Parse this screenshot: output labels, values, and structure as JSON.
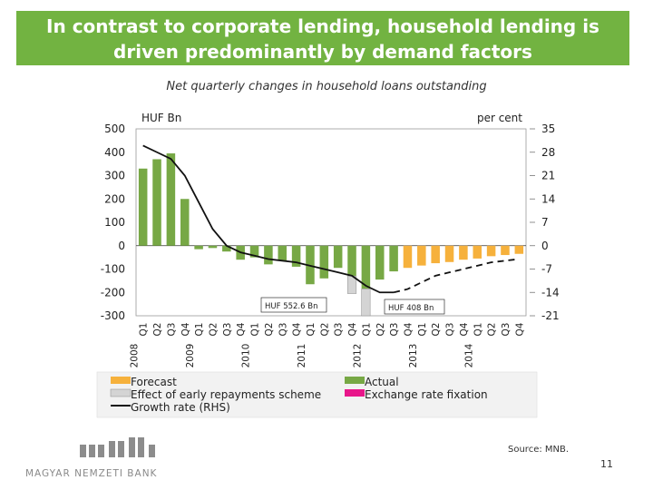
{
  "title": {
    "line1": "In contrast to corporate lending, household lending is",
    "line2": "driven predominantly by demand factors"
  },
  "subtitle": "Net quarterly changes in household loans outstanding",
  "source": "Source: MNB.",
  "page_number": "11",
  "logo": {
    "text": "MAGYAR NEMZETI BANK"
  },
  "colors": {
    "title_bg": "#72b341",
    "actual": "#77a845",
    "forecast": "#f6b13c",
    "early_repayment": "#d4d4d4",
    "fx_fixation": "#e8168a",
    "growth_line": "#111111"
  },
  "chart_data": {
    "type": "bar",
    "left_axis_unit": "HUF Bn",
    "right_axis_unit": "per cent",
    "ylim": [
      -300,
      500
    ],
    "y2lim": [
      -21,
      35
    ],
    "yticks": [
      "500",
      "400",
      "300",
      "200",
      "100",
      "0",
      "-100",
      "-200",
      "-300"
    ],
    "y2ticks": [
      "35",
      "28",
      "21",
      "14",
      "7",
      "0",
      "-7",
      "-14",
      "-21"
    ],
    "quarters": [
      "Q1",
      "Q2",
      "Q3",
      "Q4",
      "Q1",
      "Q2",
      "Q3",
      "Q4",
      "Q1",
      "Q2",
      "Q3",
      "Q4",
      "Q1",
      "Q2",
      "Q3",
      "Q4",
      "Q1",
      "Q2",
      "Q3",
      "Q4",
      "Q1",
      "Q2",
      "Q3",
      "Q4",
      "Q1",
      "Q2",
      "Q3",
      "Q4"
    ],
    "years": [
      "2008",
      "2009",
      "2010",
      "2011",
      "2012",
      "2013",
      "2014"
    ],
    "series": [
      {
        "name": "Actual",
        "values": [
          330,
          370,
          395,
          200,
          -15,
          -10,
          -25,
          -60,
          -50,
          -80,
          -65,
          -90,
          -165,
          -140,
          -95,
          -130,
          -185,
          -145,
          -110,
          null,
          null,
          null,
          null,
          null,
          null,
          null,
          null,
          null
        ]
      },
      {
        "name": "Forecast",
        "values": [
          null,
          null,
          null,
          null,
          null,
          null,
          null,
          null,
          null,
          null,
          null,
          null,
          null,
          null,
          null,
          null,
          null,
          null,
          null,
          -95,
          -85,
          -75,
          -70,
          -60,
          -55,
          -45,
          -40,
          -35
        ]
      },
      {
        "name": "Effect of early repayments scheme",
        "values": [
          null,
          null,
          null,
          null,
          null,
          null,
          null,
          null,
          null,
          null,
          null,
          null,
          null,
          null,
          null,
          -75,
          -350,
          null,
          null,
          null,
          null,
          null,
          null,
          null,
          null,
          null,
          null,
          null
        ]
      },
      {
        "name": "Exchange rate fixation",
        "values": [
          null,
          null,
          null,
          null,
          null,
          null,
          null,
          null,
          null,
          null,
          null,
          null,
          null,
          null,
          null,
          null,
          null,
          null,
          null,
          null,
          null,
          null,
          null,
          null,
          null,
          null,
          null,
          null
        ]
      }
    ],
    "line_series": {
      "name": "Growth rate (RHS)",
      "actual_values": [
        30,
        28,
        26,
        21,
        13,
        5,
        0,
        -2,
        -3,
        -4,
        -4.5,
        -5,
        -6,
        -7,
        -8,
        -9,
        -12,
        -14,
        -14,
        null,
        null,
        null,
        null,
        null,
        null,
        null,
        null,
        null
      ],
      "forecast_values": [
        null,
        null,
        null,
        null,
        null,
        null,
        null,
        null,
        null,
        null,
        null,
        null,
        null,
        null,
        null,
        null,
        null,
        null,
        -14,
        -13,
        -11,
        -9,
        -8,
        -7,
        -6,
        -5,
        -4.5,
        -4
      ]
    },
    "annotations": [
      {
        "text": "HUF 552.6 Bn",
        "quarter_index": 16
      },
      {
        "text": "HUF 408 Bn",
        "quarter_index": 17
      }
    ],
    "legend": {
      "placement": "bottom",
      "items": [
        {
          "label": "Forecast",
          "key": "forecast"
        },
        {
          "label": "Actual",
          "key": "actual"
        },
        {
          "label": "Effect of early repayments scheme",
          "key": "early_repayment"
        },
        {
          "label": "Exchange rate fixation",
          "key": "fx_fixation"
        },
        {
          "label": "Growth rate (RHS)",
          "key": "growth_line"
        }
      ]
    }
  }
}
